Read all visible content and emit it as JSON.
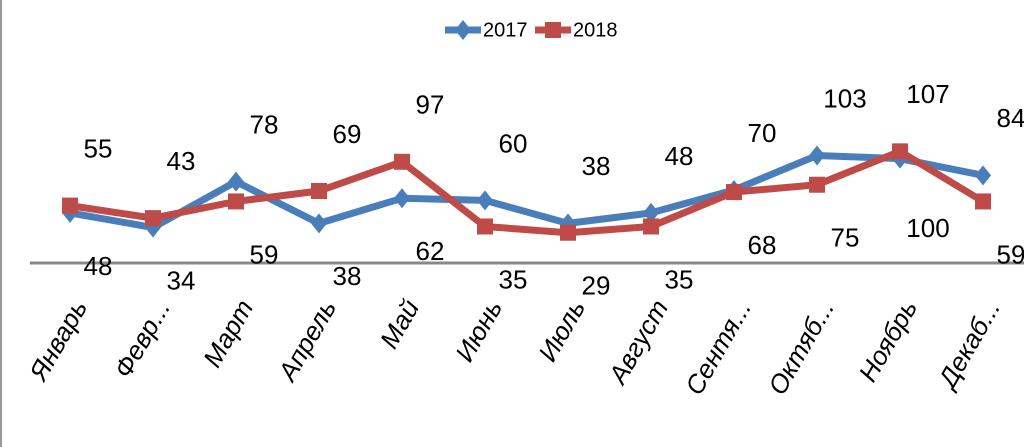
{
  "chart_data": {
    "type": "line",
    "categories": [
      "Январь",
      "Февр...",
      "Март",
      "Апрель",
      "Май",
      "Июнь",
      "Июль",
      "Август",
      "Сентя...",
      "Октяб...",
      "Ноябрь",
      "Декаб..."
    ],
    "series": [
      {
        "name": "2017",
        "color": "#4a7ebb",
        "values": [
          48,
          34,
          78,
          38,
          62,
          60,
          38,
          48,
          70,
          103,
          100,
          84
        ]
      },
      {
        "name": "2018",
        "color": "#be4b48",
        "values": [
          55,
          43,
          59,
          69,
          97,
          35,
          29,
          35,
          68,
          75,
          107,
          59
        ]
      }
    ],
    "ylim": [
      0,
      230
    ],
    "legend": "top"
  }
}
